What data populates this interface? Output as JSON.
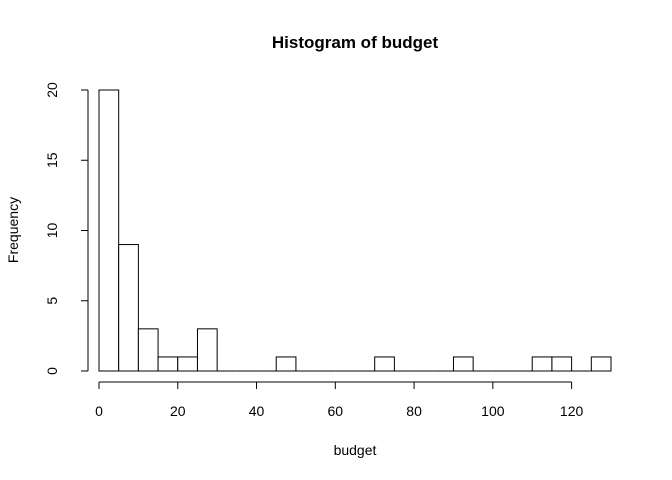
{
  "chart_data": {
    "type": "bar",
    "subtype": "histogram",
    "title": "Histogram of budget",
    "xlabel": "budget",
    "ylabel": "Frequency",
    "bin_width": 5,
    "bins": [
      {
        "start": 0,
        "end": 5,
        "count": 20
      },
      {
        "start": 5,
        "end": 10,
        "count": 9
      },
      {
        "start": 10,
        "end": 15,
        "count": 3
      },
      {
        "start": 15,
        "end": 20,
        "count": 1
      },
      {
        "start": 20,
        "end": 25,
        "count": 1
      },
      {
        "start": 25,
        "end": 30,
        "count": 3
      },
      {
        "start": 30,
        "end": 35,
        "count": 0
      },
      {
        "start": 35,
        "end": 40,
        "count": 0
      },
      {
        "start": 40,
        "end": 45,
        "count": 0
      },
      {
        "start": 45,
        "end": 50,
        "count": 1
      },
      {
        "start": 50,
        "end": 55,
        "count": 0
      },
      {
        "start": 55,
        "end": 60,
        "count": 0
      },
      {
        "start": 60,
        "end": 65,
        "count": 0
      },
      {
        "start": 65,
        "end": 70,
        "count": 0
      },
      {
        "start": 70,
        "end": 75,
        "count": 1
      },
      {
        "start": 75,
        "end": 80,
        "count": 0
      },
      {
        "start": 80,
        "end": 85,
        "count": 0
      },
      {
        "start": 85,
        "end": 90,
        "count": 0
      },
      {
        "start": 90,
        "end": 95,
        "count": 1
      },
      {
        "start": 95,
        "end": 100,
        "count": 0
      },
      {
        "start": 100,
        "end": 105,
        "count": 0
      },
      {
        "start": 105,
        "end": 110,
        "count": 0
      },
      {
        "start": 110,
        "end": 115,
        "count": 1
      },
      {
        "start": 115,
        "end": 120,
        "count": 1
      },
      {
        "start": 120,
        "end": 125,
        "count": 0
      },
      {
        "start": 125,
        "end": 130,
        "count": 1
      }
    ],
    "xlim": [
      0,
      130
    ],
    "ylim": [
      0,
      20
    ],
    "x_ticks": [
      0,
      20,
      40,
      60,
      80,
      100,
      120
    ],
    "y_ticks": [
      0,
      5,
      10,
      15,
      20
    ],
    "grid": false,
    "legend": "none",
    "bar_fill": "#ffffff",
    "bar_stroke": "#000000"
  }
}
